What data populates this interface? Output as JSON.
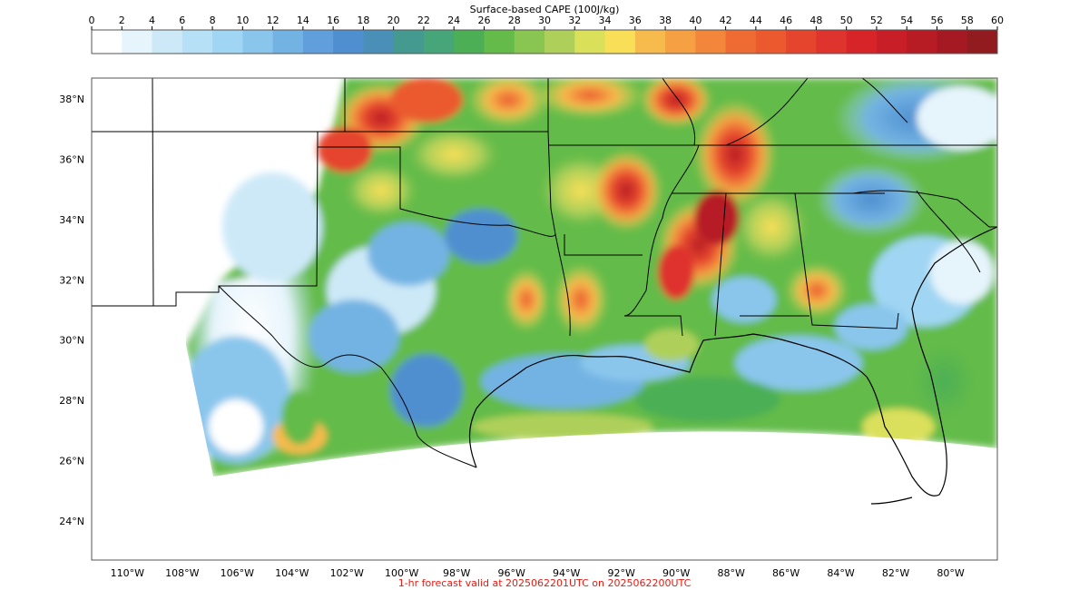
{
  "colorbar": {
    "title": "Surface-based CAPE (100J/kg)",
    "ticks": [
      "0",
      "2",
      "4",
      "6",
      "8",
      "10",
      "12",
      "14",
      "16",
      "18",
      "20",
      "22",
      "24",
      "26",
      "28",
      "30",
      "32",
      "34",
      "36",
      "38",
      "40",
      "42",
      "44",
      "46",
      "48",
      "50",
      "52",
      "54",
      "56",
      "58",
      "60"
    ],
    "colors": [
      "#ffffff",
      "#e6f4fc",
      "#cde9f8",
      "#b6e0f6",
      "#a0d6f3",
      "#8ac6ec",
      "#73b3e3",
      "#609fdb",
      "#4f8fd0",
      "#4a8fb8",
      "#449a8f",
      "#46a679",
      "#4caf55",
      "#64bb4a",
      "#89c551",
      "#aed05a",
      "#dbe05b",
      "#f9df57",
      "#f7ba4c",
      "#f5a042",
      "#f2863a",
      "#ee6b33",
      "#eb5a2f",
      "#e5452d",
      "#df332d",
      "#d72428",
      "#c81e27",
      "#b71c25",
      "#a51a22",
      "#911b1e"
    ]
  },
  "map": {
    "lat_labels": [
      "38°N",
      "36°N",
      "34°N",
      "32°N",
      "30°N",
      "28°N",
      "26°N",
      "24°N"
    ],
    "lon_labels": [
      "110°W",
      "108°W",
      "106°W",
      "104°W",
      "102°W",
      "100°W",
      "98°W",
      "96°W",
      "94°W",
      "92°W",
      "90°W",
      "88°W",
      "86°W",
      "84°W",
      "82°W",
      "80°W"
    ],
    "extent": {
      "lon_min": -111.3,
      "lon_max": -78.3,
      "lat_min": 22.7,
      "lat_max": 38.7
    }
  },
  "footer": {
    "text": "1-hr forecast valid at 2025062201UTC on 2025062200UTC",
    "color": "#e8190f"
  }
}
